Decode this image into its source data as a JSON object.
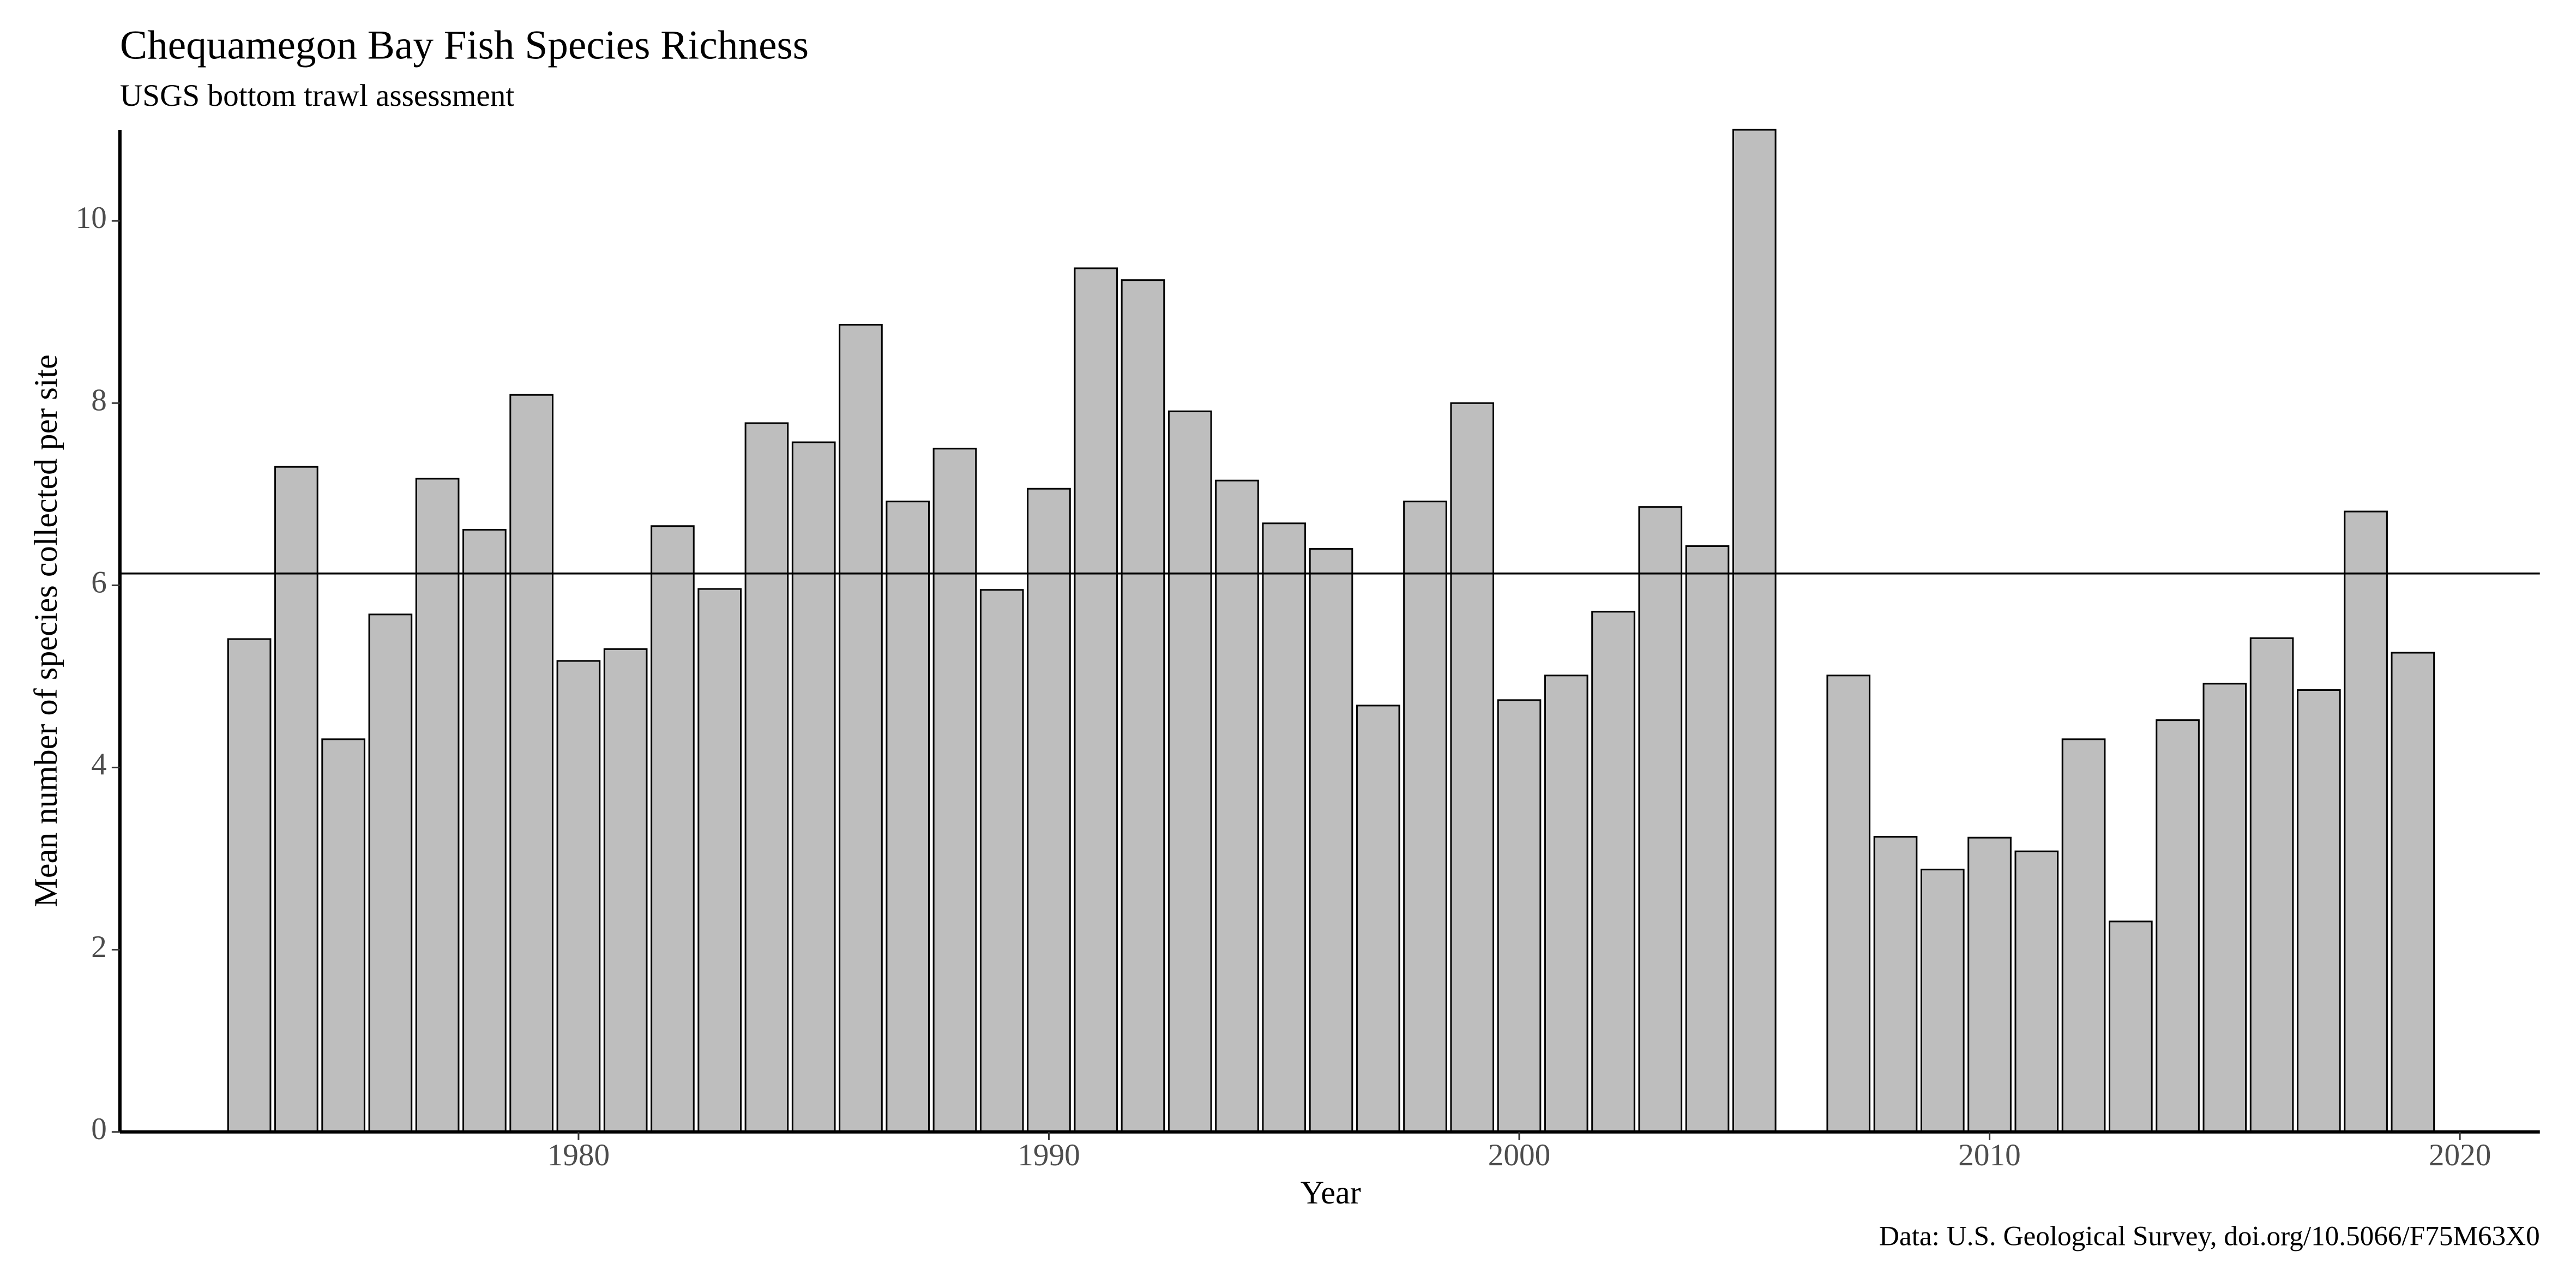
{
  "chart_data": {
    "type": "bar",
    "title": "Chequamegon Bay Fish Species Richness",
    "subtitle": "USGS bottom trawl assessment",
    "xlabel": "Year",
    "ylabel": "Mean number of species collected per site",
    "caption": "Data: U.S. Geological Survey, doi.org/10.5066/F75M63X0",
    "x": [
      1973,
      1974,
      1975,
      1976,
      1977,
      1978,
      1979,
      1980,
      1981,
      1982,
      1983,
      1984,
      1985,
      1986,
      1987,
      1988,
      1989,
      1990,
      1991,
      1992,
      1993,
      1994,
      1995,
      1996,
      1997,
      1998,
      1999,
      2000,
      2001,
      2002,
      2003,
      2004,
      2005,
      2007,
      2008,
      2009,
      2010,
      2011,
      2012,
      2013,
      2014,
      2015,
      2016,
      2017,
      2018,
      2019
    ],
    "values": [
      5.41,
      7.3,
      4.31,
      5.68,
      7.17,
      6.61,
      8.09,
      5.17,
      5.3,
      6.65,
      5.96,
      7.78,
      7.57,
      8.86,
      6.92,
      7.5,
      5.95,
      7.06,
      9.48,
      9.35,
      7.91,
      7.15,
      6.68,
      6.4,
      4.68,
      6.92,
      8.0,
      4.74,
      5.01,
      5.71,
      6.86,
      6.43,
      11,
      5.01,
      3.24,
      2.88,
      3.23,
      3.08,
      4.31,
      2.31,
      4.52,
      4.92,
      5.42,
      4.85,
      6.81,
      5.26
    ],
    "color": "#bebebe",
    "hline": 6.13,
    "xlim": [
      1970.25,
      2021.7
    ],
    "xticks": [
      1980,
      1990,
      2000,
      2010,
      2020
    ],
    "ylim": [
      0,
      11
    ],
    "yticks": [
      0,
      2,
      4,
      6,
      8,
      10
    ],
    "grid": false
  }
}
